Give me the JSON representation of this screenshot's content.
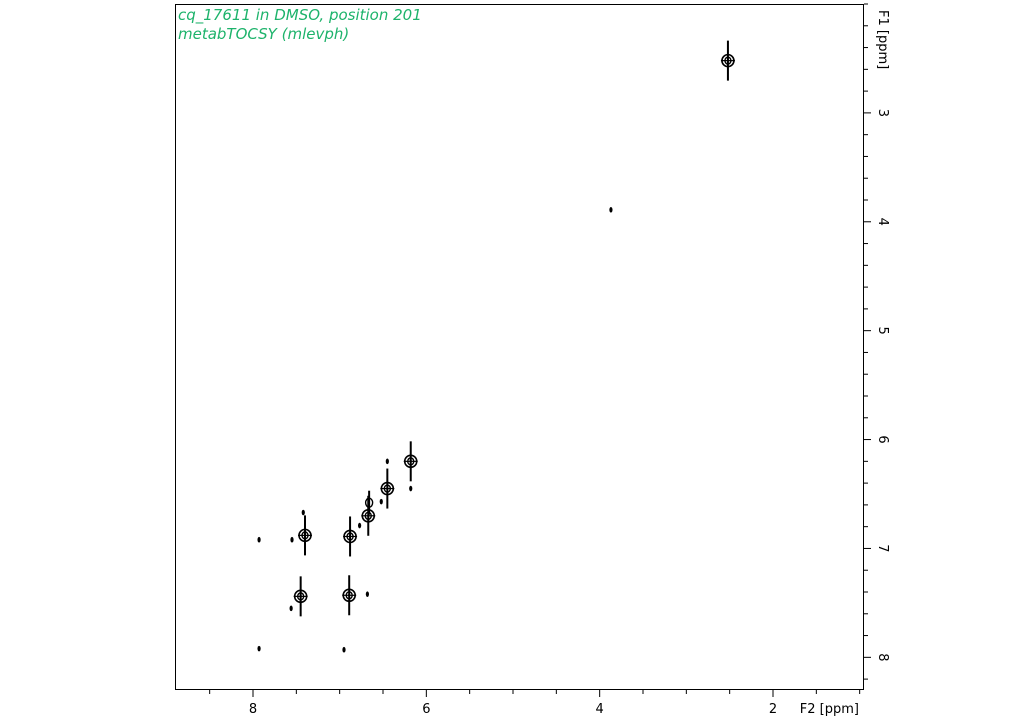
{
  "header": {
    "sample": "cq_17611 in DMSO, position 201",
    "experiment": "metabTOCSY (mlevph)"
  },
  "chart_data": {
    "type": "scatter",
    "plot_kind": "2D NMR TOCSY contour plot",
    "xlabel": "F2 [ppm]",
    "ylabel": "F1 [ppm]",
    "xlim": [
      8.9,
      0.95
    ],
    "ylim": [
      2.0,
      8.3
    ],
    "x_axis_reversed": true,
    "y_axis_inverted": true,
    "x_ticks": [
      8,
      6,
      4,
      2
    ],
    "y_ticks": [
      3,
      4,
      5,
      6,
      7,
      8
    ],
    "x_minor_step": 0.5,
    "y_minor_step": 0.2,
    "grid": false,
    "series_color": "#000000",
    "points": [
      {
        "x": 2.52,
        "y": 2.52,
        "strength": 3
      },
      {
        "x": 3.87,
        "y": 3.89,
        "strength": 1
      },
      {
        "x": 6.18,
        "y": 6.2,
        "strength": 3
      },
      {
        "x": 6.18,
        "y": 6.45,
        "strength": 1
      },
      {
        "x": 6.45,
        "y": 6.2,
        "strength": 1
      },
      {
        "x": 6.45,
        "y": 6.45,
        "strength": 3
      },
      {
        "x": 6.52,
        "y": 6.57,
        "strength": 1
      },
      {
        "x": 6.66,
        "y": 6.58,
        "strength": 2
      },
      {
        "x": 6.67,
        "y": 6.7,
        "strength": 3
      },
      {
        "x": 6.68,
        "y": 7.42,
        "strength": 1
      },
      {
        "x": 6.77,
        "y": 6.79,
        "strength": 1
      },
      {
        "x": 6.88,
        "y": 6.89,
        "strength": 3
      },
      {
        "x": 6.89,
        "y": 7.43,
        "strength": 3
      },
      {
        "x": 6.95,
        "y": 7.93,
        "strength": 1
      },
      {
        "x": 7.4,
        "y": 6.88,
        "strength": 3
      },
      {
        "x": 7.42,
        "y": 6.67,
        "strength": 1
      },
      {
        "x": 7.45,
        "y": 7.44,
        "strength": 3
      },
      {
        "x": 7.55,
        "y": 6.92,
        "strength": 1
      },
      {
        "x": 7.56,
        "y": 7.55,
        "strength": 1
      },
      {
        "x": 7.93,
        "y": 6.92,
        "strength": 1
      },
      {
        "x": 7.93,
        "y": 7.92,
        "strength": 1
      }
    ]
  }
}
